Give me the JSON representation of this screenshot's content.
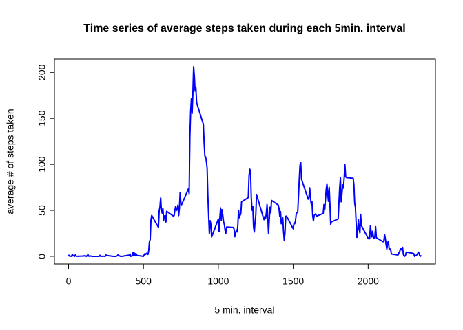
{
  "chart_data": {
    "type": "line",
    "title": "Time series of average steps taken during each 5min. interval",
    "xlabel": "5 min. interval",
    "ylabel": "average # of steps taken",
    "color": "#0000ff",
    "x": [
      0,
      5,
      10,
      15,
      20,
      25,
      30,
      35,
      40,
      45,
      50,
      55,
      100,
      105,
      110,
      115,
      120,
      125,
      130,
      135,
      140,
      145,
      150,
      155,
      200,
      205,
      210,
      215,
      220,
      225,
      230,
      235,
      240,
      245,
      250,
      255,
      300,
      305,
      310,
      315,
      320,
      325,
      330,
      335,
      340,
      345,
      350,
      355,
      400,
      405,
      410,
      415,
      420,
      425,
      430,
      435,
      440,
      445,
      450,
      455,
      500,
      505,
      510,
      515,
      520,
      525,
      530,
      535,
      540,
      545,
      550,
      555,
      600,
      605,
      610,
      615,
      620,
      625,
      630,
      635,
      640,
      645,
      650,
      655,
      700,
      705,
      710,
      715,
      720,
      725,
      730,
      735,
      740,
      745,
      750,
      755,
      800,
      805,
      810,
      815,
      820,
      825,
      830,
      835,
      840,
      845,
      850,
      855,
      900,
      905,
      910,
      915,
      920,
      925,
      930,
      935,
      940,
      945,
      950,
      955,
      1000,
      1005,
      1010,
      1015,
      1020,
      1025,
      1030,
      1035,
      1040,
      1045,
      1050,
      1055,
      1100,
      1105,
      1110,
      1115,
      1120,
      1125,
      1130,
      1135,
      1140,
      1145,
      1150,
      1155,
      1200,
      1205,
      1210,
      1215,
      1220,
      1225,
      1230,
      1235,
      1240,
      1245,
      1250,
      1255,
      1300,
      1305,
      1310,
      1315,
      1320,
      1325,
      1330,
      1335,
      1340,
      1345,
      1350,
      1355,
      1400,
      1405,
      1410,
      1415,
      1420,
      1425,
      1430,
      1435,
      1440,
      1445,
      1450,
      1455,
      1500,
      1505,
      1510,
      1515,
      1520,
      1525,
      1530,
      1535,
      1540,
      1545,
      1550,
      1555,
      1600,
      1605,
      1610,
      1615,
      1620,
      1625,
      1630,
      1635,
      1640,
      1645,
      1650,
      1655,
      1700,
      1705,
      1710,
      1715,
      1720,
      1725,
      1730,
      1735,
      1740,
      1745,
      1750,
      1755,
      1800,
      1805,
      1810,
      1815,
      1820,
      1825,
      1830,
      1835,
      1840,
      1845,
      1850,
      1855,
      1900,
      1905,
      1910,
      1915,
      1920,
      1925,
      1930,
      1935,
      1940,
      1945,
      1950,
      1955,
      2000,
      2005,
      2010,
      2015,
      2020,
      2025,
      2030,
      2035,
      2040,
      2045,
      2050,
      2055,
      2100,
      2105,
      2110,
      2115,
      2120,
      2125,
      2130,
      2135,
      2140,
      2145,
      2150,
      2155,
      2200,
      2205,
      2210,
      2215,
      2220,
      2225,
      2230,
      2235,
      2240,
      2245,
      2250,
      2255,
      2300,
      2305,
      2310,
      2315,
      2320,
      2325,
      2330,
      2335,
      2340,
      2345,
      2350,
      2355
    ],
    "values": [
      1.7,
      0.3,
      0.1,
      0.2,
      0.1,
      2.1,
      0.5,
      0.9,
      0,
      1.5,
      0.3,
      0.1,
      0.3,
      0.7,
      0.2,
      0.3,
      0,
      1.1,
      1.8,
      0.2,
      0.2,
      0.4,
      0.3,
      0,
      0,
      0,
      1.1,
      0,
      0,
      0.1,
      0,
      0.2,
      0,
      0,
      1.5,
      0.9,
      0,
      0,
      0,
      0,
      0.2,
      0.6,
      1.6,
      0.6,
      0.5,
      0.1,
      0,
      0,
      1.2,
      0.9,
      2.6,
      0,
      0.3,
      0.4,
      4.1,
      0.7,
      3.5,
      0.8,
      3.1,
      1.1,
      0,
      1.6,
      3,
      2.2,
      3.3,
      3,
      2.1,
      6.1,
      16,
      18.3,
      39.5,
      44.5,
      31.5,
      49.3,
      53.8,
      63.5,
      50,
      47.1,
      52.2,
      39.3,
      44,
      44.2,
      37.4,
      49,
      43.8,
      44.4,
      50.5,
      54.5,
      49.9,
      51,
      55.7,
      44.3,
      52.3,
      69.5,
      57.8,
      56.2,
      73.4,
      68.2,
      129.4,
      157.5,
      171.2,
      155.4,
      177.3,
      206.2,
      195.9,
      179.6,
      183.4,
      167,
      143.5,
      124,
      109.1,
      108.1,
      103.7,
      96,
      66.2,
      45.2,
      24.8,
      38.8,
      35,
      21,
      40.6,
      27,
      42.4,
      52.7,
      38.9,
      50.8,
      44.3,
      37.4,
      34.7,
      28.3,
      25.1,
      31.9,
      31.4,
      29.7,
      21.3,
      25.5,
      28.4,
      26.5,
      33.4,
      50,
      42,
      44.6,
      46,
      59.2,
      63.9,
      87.7,
      94.8,
      92.8,
      63.4,
      50.2,
      54.5,
      32.4,
      26.5,
      37.7,
      45.1,
      67.3,
      42.3,
      39.9,
      43.3,
      41,
      46.2,
      56.4,
      42.8,
      25.1,
      40,
      53.5,
      47.3,
      60.8,
      55.8,
      52,
      43.6,
      48.7,
      35.5,
      37.5,
      41.8,
      27.5,
      17.1,
      26.1,
      43.6,
      43.8,
      30,
      36.1,
      35.5,
      38.8,
      46,
      47.8,
      48.1,
      65.3,
      82.9,
      98.7,
      102.1,
      84,
      62.1,
      64.1,
      74.5,
      63.2,
      56.9,
      59.8,
      43.9,
      38.6,
      44.7,
      45.5,
      46.2,
      43.7,
      46.6,
      56.3,
      50.7,
      61.2,
      72.7,
      78.9,
      68.9,
      59.7,
      75.1,
      56.5,
      34.8,
      37.5,
      40.7,
      58,
      74.7,
      85.3,
      59.3,
      67.8,
      77.7,
      74.2,
      85.3,
      99.5,
      86.6,
      85.6,
      84.9,
      77.8,
      58,
      53.4,
      36.3,
      20.7,
      27.4,
      40,
      30.2,
      25.5,
      45.7,
      33.5,
      19.6,
      19,
      19.3,
      33.3,
      26.8,
      21.2,
      27.3,
      21.3,
      19.5,
      21.3,
      32.3,
      20.2,
      15.9,
      17.2,
      23.5,
      19.2,
      12.5,
      8,
      14.7,
      16.3,
      8.7,
      7.8,
      8.1,
      2.6,
      1.5,
      3.7,
      4.8,
      8.5,
      7.1,
      8.7,
      9.8,
      2.2,
      0.3,
      0.1,
      1.6,
      4.6,
      3.3,
      2.8,
      0,
      0.8,
      1,
      1.6,
      2.6,
      4.7,
      3.3,
      0.6,
      0.2,
      1.1
    ],
    "xlim": [
      -94.2,
      2449.2
    ],
    "ylim": [
      -8.25,
      214.4
    ],
    "xticks": [
      0,
      500,
      1000,
      1500,
      2000
    ],
    "yticks": [
      0,
      50,
      100,
      150,
      200
    ]
  }
}
